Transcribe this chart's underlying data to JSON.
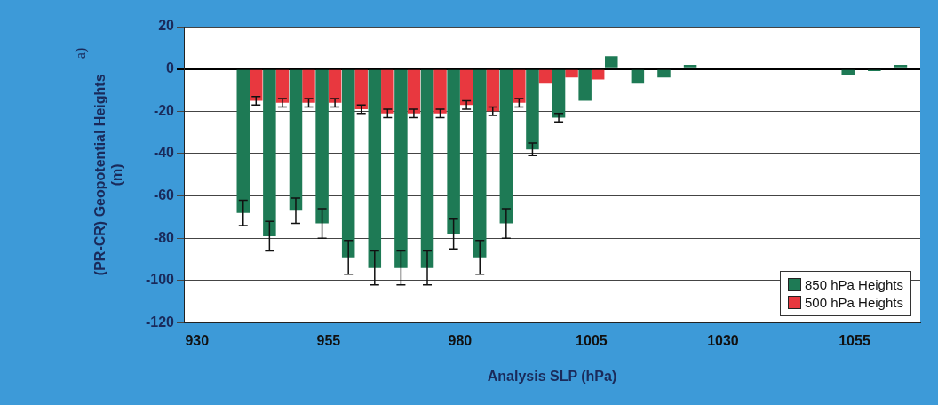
{
  "chart_data": {
    "type": "bar",
    "xlabel": "Analysis SLP (hPa)",
    "ylabel": "(PR-CR) Geopotential Heights\n(m)",
    "annotations": [
      "a)"
    ],
    "categories": [
      "930",
      null,
      null,
      null,
      null,
      "955",
      null,
      null,
      null,
      null,
      "980",
      null,
      null,
      null,
      null,
      "1005",
      null,
      null,
      null,
      null,
      "1030",
      null,
      null,
      null,
      null,
      "1055",
      null,
      null
    ],
    "series": [
      {
        "name": "850 hPa Heights",
        "color": "#1e7a55",
        "values": [
          0,
          0,
          -68,
          -79,
          -67,
          -73,
          -89,
          -94,
          -94,
          -94,
          -78,
          -89,
          -73,
          -38,
          -23,
          -15,
          6,
          -7,
          -4,
          2,
          0,
          0,
          0,
          0,
          0,
          -3,
          -1,
          2
        ],
        "errors": [
          null,
          null,
          6,
          7,
          6,
          7,
          8,
          8,
          8,
          8,
          7,
          8,
          7,
          3,
          2,
          null,
          null,
          null,
          null,
          null,
          null,
          null,
          null,
          null,
          null,
          null,
          null,
          null
        ]
      },
      {
        "name": "500 hPa Heights",
        "color": "#e8383f",
        "values": [
          0,
          0,
          -15,
          -16,
          -16,
          -16,
          -19,
          -21,
          -21,
          -21,
          -17,
          -20,
          -16,
          -7,
          -4,
          -5,
          0,
          0,
          0,
          0,
          0,
          0,
          0,
          0,
          0,
          0,
          0,
          0
        ],
        "errors": [
          null,
          null,
          2,
          2,
          2,
          2,
          2,
          2,
          2,
          2,
          2,
          2,
          2,
          null,
          null,
          null,
          null,
          null,
          null,
          null,
          null,
          null,
          null,
          null,
          null,
          null,
          null,
          null
        ]
      }
    ],
    "ylim": [
      -120,
      20
    ],
    "yticks": [
      -120,
      -100,
      -80,
      -60,
      -40,
      -20,
      0,
      20
    ],
    "grid": "y",
    "legend": "bottom right"
  }
}
